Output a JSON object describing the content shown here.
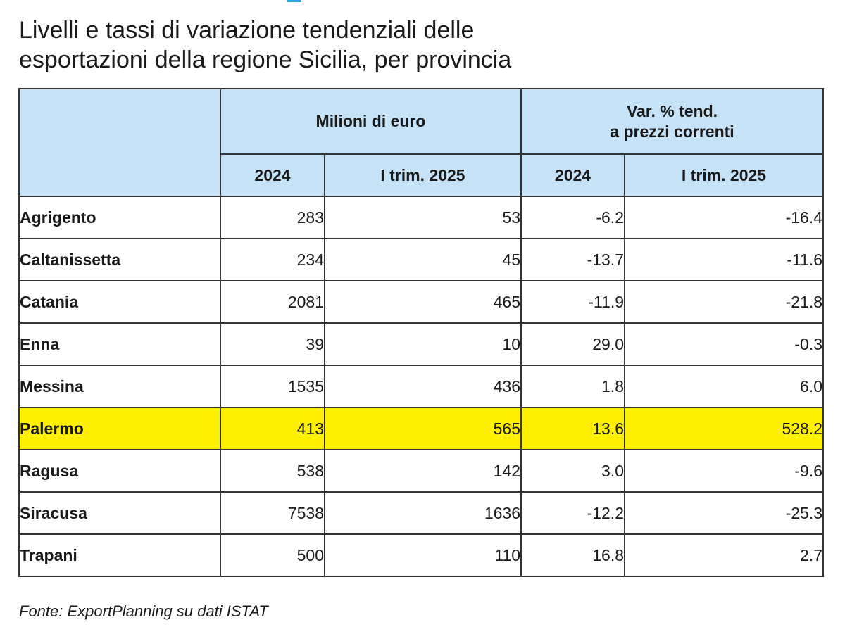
{
  "colors": {
    "header_bg": "#c6e2f6",
    "highlight_bg": "#fff000",
    "accent": "#29a3db",
    "border": "#333333"
  },
  "title": {
    "line1": "Livelli e tassi di variazione tendenziali delle",
    "line2": "esportazioni della regione Sicilia, per provincia"
  },
  "source": "Fonte: ExportPlanning su dati ISTAT",
  "chart_data": {
    "type": "table",
    "title": "Livelli e tassi di variazione tendenziali delle esportazioni della regione Sicilia, per provincia",
    "group_headers": [
      {
        "lines": [
          "Milioni di euro"
        ]
      },
      {
        "lines": [
          "Var. % tend.",
          "a prezzi correnti"
        ]
      }
    ],
    "columns": [
      "2024",
      "I trim. 2025",
      "2024",
      "I trim. 2025"
    ],
    "highlighted_row": "Palermo",
    "rows": [
      {
        "name": "Agrigento",
        "values": [
          "283",
          "53",
          "-6.2",
          "-16.4"
        ],
        "highlight": false
      },
      {
        "name": "Caltanissetta",
        "values": [
          "234",
          "45",
          "-13.7",
          "-11.6"
        ],
        "highlight": false
      },
      {
        "name": "Catania",
        "values": [
          "2081",
          "465",
          "-11.9",
          "-21.8"
        ],
        "highlight": false
      },
      {
        "name": "Enna",
        "values": [
          "39",
          "10",
          "29.0",
          "-0.3"
        ],
        "highlight": false
      },
      {
        "name": "Messina",
        "values": [
          "1535",
          "436",
          "1.8",
          "6.0"
        ],
        "highlight": false
      },
      {
        "name": "Palermo",
        "values": [
          "413",
          "565",
          "13.6",
          "528.2"
        ],
        "highlight": true
      },
      {
        "name": "Ragusa",
        "values": [
          "538",
          "142",
          "3.0",
          "-9.6"
        ],
        "highlight": false
      },
      {
        "name": "Siracusa",
        "values": [
          "7538",
          "1636",
          "-12.2",
          "-25.3"
        ],
        "highlight": false
      },
      {
        "name": "Trapani",
        "values": [
          "500",
          "110",
          "16.8",
          "2.7"
        ],
        "highlight": false
      }
    ]
  }
}
